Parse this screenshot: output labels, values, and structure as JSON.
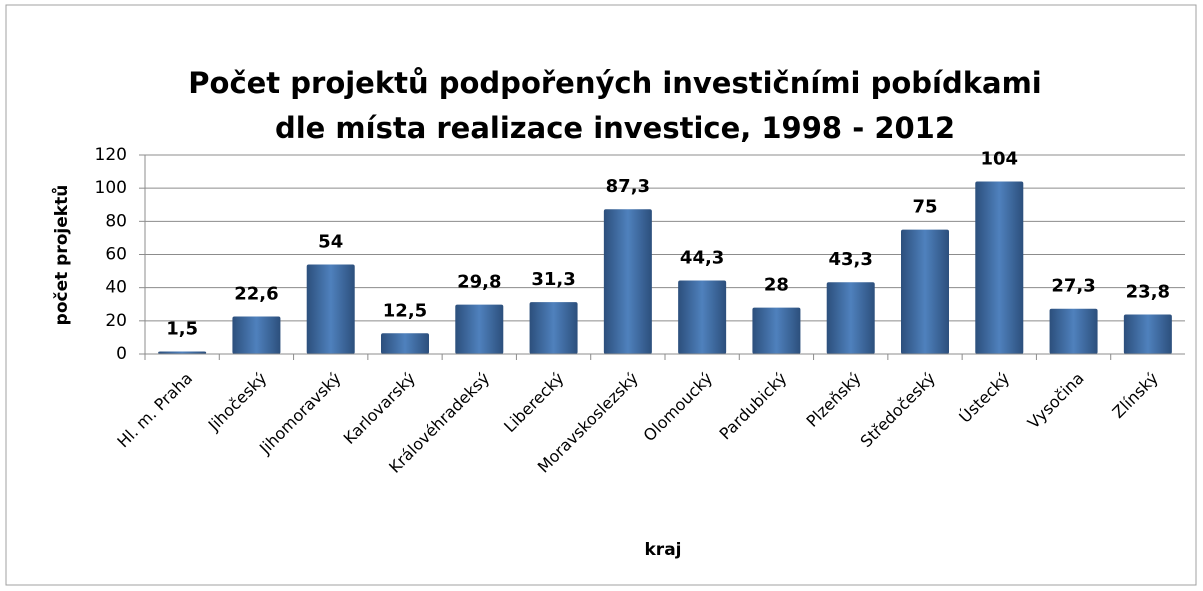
{
  "chart_data": {
    "type": "bar",
    "title": [
      "Počet  projektů podpořených investičními pobídkami",
      "dle místa realizace investice, 1998 - 2012"
    ],
    "x_label": "kraj",
    "y_label": "počet projektů",
    "categories": [
      "Hl. m. Praha",
      "Jihočeský",
      "Jihomoravský",
      "Karlovarský",
      "Královéhradeksý",
      "Liberecký",
      "Moravskoslezský",
      "Olomoucký",
      "Pardubický",
      "Plzeňský",
      "Středočeský",
      "Ústecký",
      "Vysočina",
      "Zlínský"
    ],
    "values": [
      1.5,
      22.6,
      54,
      12.5,
      29.8,
      31.3,
      87.3,
      44.3,
      28,
      43.3,
      75,
      104,
      27.3,
      23.8
    ],
    "value_labels": [
      "1,5",
      "22,6",
      "54",
      "12,5",
      "29,8",
      "31,3",
      "87,3",
      "44,3",
      "28",
      "43,3",
      "75",
      "104",
      "27,3",
      "23,8"
    ],
    "color": "#4f81bd",
    "ylim": [
      0,
      120
    ],
    "yticks": [
      0,
      20,
      40,
      60,
      80,
      100,
      120
    ],
    "grid": true
  }
}
